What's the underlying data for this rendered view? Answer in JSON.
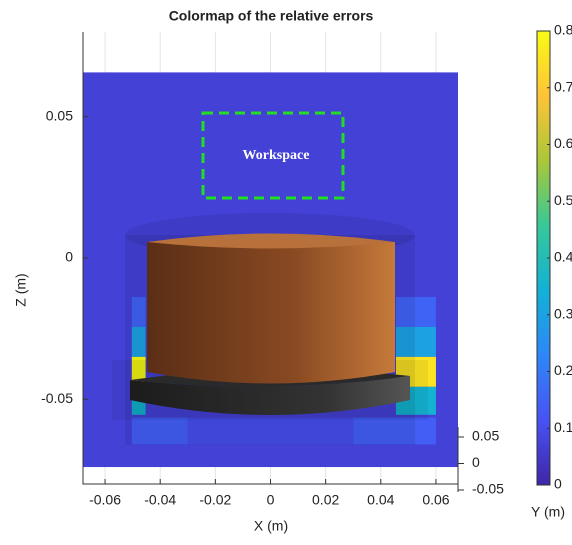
{
  "chart_data": {
    "type": "heatmap",
    "title": "Colormap of the relative errors",
    "xlabel": "X (m)",
    "ylabel": "Z (m)",
    "depth_label": "Y (m)",
    "annotation": "Workspace",
    "xlim": [
      -0.068,
      0.068
    ],
    "xticks": [
      -0.06,
      -0.04,
      -0.02,
      0,
      0.02,
      0.04,
      0.06
    ],
    "ylim": [
      -0.08,
      0.08
    ],
    "yticks": [
      -0.05,
      0,
      0.05
    ],
    "depth_lim": [
      -0.05,
      0.05
    ],
    "depth_ticks": [
      -0.05,
      0,
      0.05
    ],
    "colormap": "parula",
    "clim": [
      0,
      0.8
    ],
    "cticks": [
      0,
      0.1,
      0.2,
      0.3,
      0.4,
      0.5,
      0.6,
      0.7,
      0.8
    ],
    "grid": true,
    "cells": [
      {
        "x": [
          -0.068,
          0.068
        ],
        "z": [
          -0.074,
          0.0657
        ],
        "value": 0.07
      },
      {
        "x": [
          -0.0503,
          -0.0453
        ],
        "z": [
          -0.0244,
          -0.0138
        ],
        "value": 0.15
      },
      {
        "x": [
          -0.0503,
          -0.0453
        ],
        "z": [
          -0.035,
          -0.0244
        ],
        "value": 0.3
      },
      {
        "x": [
          -0.0503,
          -0.0453
        ],
        "z": [
          -0.0456,
          -0.035
        ],
        "value": 0.8
      },
      {
        "x": [
          -0.0503,
          -0.0453
        ],
        "z": [
          -0.0555,
          -0.0456
        ],
        "value": 0.35
      },
      {
        "x": [
          0.0455,
          0.06
        ],
        "z": [
          -0.0244,
          -0.0138
        ],
        "value": 0.15
      },
      {
        "x": [
          0.0455,
          0.06
        ],
        "z": [
          -0.035,
          -0.0244
        ],
        "value": 0.3
      },
      {
        "x": [
          0.0455,
          0.06
        ],
        "z": [
          -0.0456,
          -0.035
        ],
        "value": 0.75
      },
      {
        "x": [
          0.0455,
          0.06
        ],
        "z": [
          -0.0555,
          -0.0456
        ],
        "value": 0.35
      },
      {
        "x": [
          -0.0503,
          -0.03
        ],
        "z": [
          -0.066,
          -0.0565
        ],
        "value": 0.14
      },
      {
        "x": [
          -0.03,
          0.03
        ],
        "z": [
          -0.066,
          -0.0565
        ],
        "value": 0.1
      },
      {
        "x": [
          0.03,
          0.06
        ],
        "z": [
          -0.066,
          -0.0565
        ],
        "value": 0.14
      }
    ]
  }
}
